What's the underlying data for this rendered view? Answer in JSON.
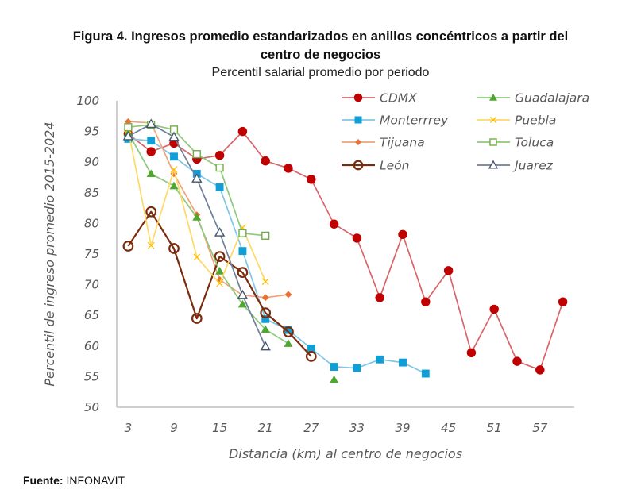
{
  "chart_data": {
    "type": "line",
    "title": "Figura 4. Ingresos promedio estandarizados en anillos concéntricos a partir del",
    "title_line2": "centro de negocios",
    "subtitle": "Percentil salarial promedio por periodo",
    "xlabel": "Distancia (km) al centro de negocios",
    "ylabel": "Percentil de ingreso promedio 2015-2024",
    "ylim": [
      50,
      100
    ],
    "yticks": [
      100,
      95,
      90,
      85,
      80,
      75,
      70,
      65,
      60,
      55,
      50
    ],
    "x": [
      3,
      6,
      9,
      12,
      15,
      18,
      21,
      24,
      27,
      30,
      33,
      36,
      39,
      42,
      45,
      48,
      51,
      54,
      57,
      60
    ],
    "xtick_labels": [
      "3",
      "9",
      "15",
      "21",
      "27",
      "33",
      "39",
      "45",
      "51",
      "57"
    ],
    "grid": false,
    "legend_position": "top-right",
    "series": [
      {
        "name": "CDMX",
        "color": "#C00000",
        "line": "#D9646A",
        "marker": "circle-filled",
        "values": [
          94.6,
          91.7,
          93.1,
          90.5,
          91.1,
          95.0,
          90.2,
          89.0,
          87.2,
          79.9,
          77.6,
          67.9,
          78.2,
          67.2,
          72.3,
          58.9,
          66.0,
          57.5,
          56.1,
          67.2
        ]
      },
      {
        "name": "Guadalajara",
        "color": "#4EA72E",
        "line": "#8CC97A",
        "marker": "triangle-filled",
        "values": [
          94.8,
          88.1,
          86.1,
          81.0,
          72.2,
          66.8,
          62.7,
          60.4,
          null,
          54.5,
          null,
          null,
          null,
          null,
          null,
          null,
          null,
          null,
          null,
          null
        ]
      },
      {
        "name": "Monterrrey",
        "color": "#0F9ED5",
        "line": "#7FC6E6",
        "marker": "square-filled",
        "values": [
          93.8,
          93.5,
          90.9,
          88.1,
          85.9,
          75.5,
          64.4,
          62.6,
          59.6,
          56.6,
          56.4,
          57.8,
          57.3,
          55.5,
          null,
          null,
          null,
          null,
          null,
          null
        ]
      },
      {
        "name": "Puebla",
        "color": "#FFC000",
        "line": "#FFD966",
        "marker": "x",
        "values": [
          95.3,
          76.4,
          88.8,
          74.5,
          70.2,
          79.3,
          70.5,
          null,
          null,
          null,
          null,
          null,
          null,
          null,
          null,
          null,
          null,
          null,
          null,
          null
        ]
      },
      {
        "name": "Tijuana",
        "color": "#E97132",
        "line": "#F0A47A",
        "marker": "diamond-filled",
        "values": [
          96.6,
          96.4,
          88.1,
          81.4,
          70.8,
          68.3,
          67.9,
          68.4,
          null,
          null,
          null,
          null,
          null,
          null,
          null,
          null,
          null,
          null,
          null,
          null
        ]
      },
      {
        "name": "Toluca",
        "color": "#70AD47",
        "line": "#8CC97A",
        "marker": "square-open",
        "values": [
          95.7,
          96.1,
          95.3,
          91.3,
          89.1,
          78.4,
          78.0,
          null,
          null,
          null,
          null,
          null,
          null,
          null,
          null,
          null,
          null,
          null,
          null,
          null
        ]
      },
      {
        "name": "León",
        "color": "#7B2C0C",
        "line": "#7B2C0C",
        "marker": "circle-open",
        "values": [
          76.3,
          81.9,
          75.9,
          64.5,
          74.6,
          72.0,
          65.4,
          62.3,
          58.3,
          null,
          null,
          null,
          null,
          null,
          null,
          null,
          null,
          null,
          null,
          null
        ]
      },
      {
        "name": "Juarez",
        "color": "#44546A",
        "line": "#6E7F96",
        "marker": "triangle-open",
        "values": [
          94.2,
          96.2,
          94.1,
          87.3,
          78.5,
          68.3,
          59.9,
          null,
          null,
          null,
          null,
          null,
          null,
          null,
          null,
          null,
          null,
          null,
          null,
          null
        ]
      }
    ]
  },
  "source": {
    "label": "Fuente:",
    "value": "INFONAVIT"
  }
}
